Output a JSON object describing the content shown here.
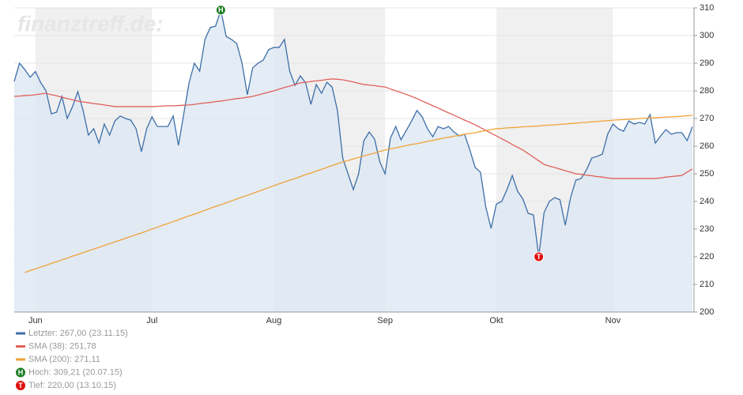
{
  "chart_data": {
    "type": "line",
    "watermark": "finanztreff.de:",
    "categories": [
      null,
      null,
      null,
      null,
      "Jun",
      null,
      null,
      null,
      null,
      null,
      null,
      null,
      null,
      null,
      null,
      null,
      null,
      null,
      null,
      null,
      null,
      null,
      null,
      null,
      null,
      null,
      "Jul",
      null,
      null,
      null,
      null,
      null,
      null,
      null,
      null,
      null,
      null,
      null,
      null,
      null,
      null,
      null,
      null,
      null,
      null,
      null,
      null,
      null,
      null,
      "Aug",
      null,
      null,
      null,
      null,
      null,
      null,
      null,
      null,
      null,
      null,
      null,
      null,
      null,
      null,
      null,
      null,
      null,
      null,
      null,
      null,
      "Sep",
      null,
      null,
      null,
      null,
      null,
      null,
      null,
      null,
      null,
      null,
      null,
      null,
      null,
      null,
      null,
      null,
      null,
      null,
      null,
      null,
      "Okt",
      null,
      null,
      null,
      null,
      null,
      null,
      null,
      null,
      null,
      null,
      null,
      null,
      null,
      null,
      null,
      null,
      null,
      null,
      null,
      null,
      null,
      "Nov",
      null,
      null,
      null,
      null,
      null,
      null,
      null,
      null,
      null,
      null,
      null,
      null,
      null,
      null,
      null
    ],
    "series": [
      {
        "name": "Letzter: 267,00 (23.11.15)",
        "color": "#3d6fa8",
        "fill": "#dde7f3",
        "values": [
          283.4,
          290.0,
          287.7,
          284.9,
          287.0,
          283.0,
          280.0,
          271.7,
          272.3,
          278.0,
          270.0,
          274.3,
          279.7,
          272.9,
          264.0,
          266.3,
          261.1,
          268.0,
          264.0,
          269.1,
          270.9,
          270.0,
          269.4,
          266.3,
          258.0,
          266.3,
          270.6,
          267.1,
          267.1,
          267.1,
          270.9,
          260.3,
          271.7,
          282.9,
          290.0,
          287.1,
          298.6,
          302.9,
          303.4,
          309.21,
          299.7,
          298.6,
          297.1,
          290.0,
          278.6,
          288.3,
          290.0,
          291.1,
          294.9,
          295.7,
          295.7,
          298.6,
          287.1,
          282.0,
          285.4,
          282.9,
          275.1,
          282.3,
          279.1,
          283.1,
          281.4,
          272.9,
          255.7,
          250.0,
          244.3,
          250.0,
          262.0,
          265.1,
          262.6,
          254.3,
          250.0,
          262.9,
          267.1,
          262.3,
          265.7,
          269.1,
          272.9,
          270.6,
          266.3,
          263.4,
          267.1,
          266.3,
          267.1,
          265.1,
          263.7,
          264.3,
          258.6,
          252.3,
          250.6,
          238.0,
          230.3,
          239.1,
          240.0,
          244.3,
          249.4,
          243.7,
          240.9,
          235.7,
          235.1,
          220.0,
          236.0,
          240.0,
          241.4,
          240.6,
          231.4,
          241.4,
          247.7,
          248.3,
          251.4,
          255.7,
          256.3,
          257.1,
          264.3,
          268.0,
          266.3,
          265.4,
          269.1,
          268.0,
          268.6,
          268.0,
          271.4,
          261.1,
          263.7,
          266.0,
          264.3,
          264.9,
          264.9,
          262.0,
          267.0
        ]
      },
      {
        "name": "SMA (38): 251,78",
        "color": "#e0605a",
        "values": [
          278.0,
          278.1,
          278.3,
          278.4,
          278.6,
          278.9,
          279.1,
          278.6,
          278.2,
          277.7,
          277.2,
          276.8,
          276.3,
          276.0,
          275.7,
          275.4,
          275.2,
          274.9,
          274.6,
          274.3,
          274.3,
          274.3,
          274.3,
          274.3,
          274.3,
          274.3,
          274.3,
          274.4,
          274.5,
          274.6,
          274.6,
          274.7,
          274.8,
          274.9,
          275.1,
          275.4,
          275.6,
          275.8,
          276.1,
          276.3,
          276.6,
          276.9,
          277.2,
          277.4,
          277.7,
          278.0,
          278.5,
          279.0,
          279.5,
          280.0,
          280.6,
          281.2,
          281.7,
          282.3,
          282.9,
          283.1,
          283.4,
          283.6,
          283.8,
          284.1,
          284.3,
          284.2,
          284.0,
          283.6,
          283.2,
          282.7,
          282.3,
          282.1,
          281.9,
          281.6,
          281.4,
          280.7,
          280.0,
          279.4,
          278.7,
          278.0,
          277.2,
          276.3,
          275.5,
          274.6,
          273.8,
          272.9,
          272.0,
          271.2,
          270.3,
          269.4,
          268.6,
          267.7,
          266.7,
          265.7,
          264.7,
          263.7,
          262.7,
          261.7,
          260.6,
          259.6,
          258.6,
          257.3,
          256.0,
          254.7,
          253.4,
          252.8,
          252.3,
          251.7,
          251.1,
          250.6,
          250.0,
          249.8,
          249.5,
          249.3,
          249.0,
          248.8,
          248.5,
          248.3,
          248.3,
          248.3,
          248.3,
          248.3,
          248.3,
          248.3,
          248.3,
          248.3,
          248.5,
          248.8,
          249.0,
          249.2,
          249.4,
          250.6,
          251.78
        ]
      },
      {
        "name": "SMA (200): 271,11",
        "color": "#f0a238",
        "values": [
          null,
          null,
          214.3,
          215.0,
          215.6,
          216.3,
          216.9,
          217.6,
          218.2,
          218.9,
          219.5,
          220.2,
          220.8,
          221.5,
          222.1,
          222.8,
          223.4,
          224.1,
          224.7,
          225.4,
          226.0,
          226.7,
          227.3,
          228.0,
          228.6,
          229.3,
          230.0,
          230.7,
          231.4,
          232.0,
          232.7,
          233.4,
          234.1,
          234.8,
          235.4,
          236.1,
          236.8,
          237.5,
          238.2,
          238.8,
          239.5,
          240.2,
          240.9,
          241.6,
          242.2,
          242.9,
          243.6,
          244.3,
          245.0,
          245.7,
          246.4,
          247.0,
          247.7,
          248.3,
          249.0,
          249.7,
          250.3,
          251.0,
          251.6,
          252.3,
          253.0,
          253.6,
          254.3,
          254.8,
          255.4,
          255.9,
          256.5,
          257.0,
          257.5,
          258.1,
          258.6,
          259.0,
          259.4,
          259.8,
          260.2,
          260.6,
          260.9,
          261.3,
          261.7,
          262.1,
          262.5,
          262.9,
          263.2,
          263.6,
          263.9,
          264.3,
          264.6,
          264.9,
          265.3,
          265.6,
          266.0,
          266.3,
          266.4,
          266.6,
          266.7,
          266.8,
          267.0,
          267.1,
          267.2,
          267.3,
          267.5,
          267.6,
          267.7,
          267.9,
          268.0,
          268.2,
          268.3,
          268.5,
          268.6,
          268.8,
          268.9,
          269.1,
          269.2,
          269.4,
          269.5,
          269.6,
          269.7,
          269.8,
          270.0,
          270.1,
          270.2,
          270.3,
          270.4,
          270.5,
          270.6,
          270.7,
          270.8,
          271.0,
          271.11
        ]
      }
    ],
    "markers": {
      "high": {
        "symbol": "H",
        "label": "Hoch: 309,21 (20.07.15)",
        "color": "#1e7d24"
      },
      "low": {
        "symbol": "T",
        "label": "Tief: 220,00 (13.10.15)",
        "color": "#e01010"
      }
    },
    "ylim": [
      200,
      310
    ],
    "yticks": [
      200,
      210,
      220,
      230,
      240,
      250,
      260,
      270,
      280,
      290,
      300,
      310
    ],
    "grid": true
  }
}
